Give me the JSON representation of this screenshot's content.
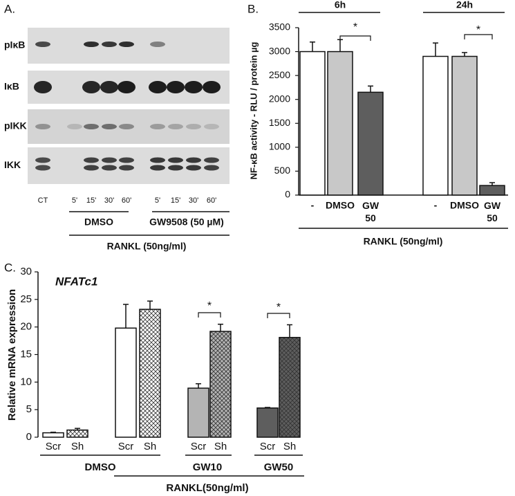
{
  "panel_a": {
    "label": "A.",
    "rows": [
      "pIκB",
      "IκB",
      "pIKK",
      "IKK"
    ],
    "lanes": [
      "CT",
      "5'",
      "15'",
      "30'",
      "60'",
      "5'",
      "15'",
      "30'",
      "60'"
    ],
    "groups": [
      "DMSO",
      "GW9508 (50 µM)"
    ],
    "treatment": "RANKL (50ng/ml)"
  },
  "chart_data": [
    {
      "type": "bar",
      "panel_label": "B.",
      "ylabel": "NF-κB activity - RLU / protein µg",
      "categories": [
        "-",
        "DMSO",
        "GW 50",
        "-",
        "DMSO",
        "GW 50"
      ],
      "values": [
        3000,
        3000,
        2150,
        2900,
        2900,
        200
      ],
      "errors": [
        200,
        250,
        130,
        280,
        80,
        60
      ],
      "colors": [
        "#ffffff",
        "#c8c8c8",
        "#5e5e5e",
        "#ffffff",
        "#c8c8c8",
        "#5e5e5e"
      ],
      "ylim": [
        0,
        3500
      ],
      "yticks": [
        0,
        500,
        1000,
        1500,
        2000,
        2500,
        3000,
        3500
      ],
      "groups": [
        "6h",
        "24h"
      ],
      "treatment": "RANKL (50ng/ml)",
      "annotations": [
        "*",
        "*"
      ]
    },
    {
      "type": "bar",
      "panel_label": "C.",
      "title": "NFATc1",
      "ylabel": "Relative mRNA expression",
      "categories": [
        "Scr",
        "Sh",
        "Scr",
        "Sh",
        "Scr",
        "Sh",
        "Scr",
        "Sh"
      ],
      "values": [
        0.8,
        1.3,
        19.8,
        23.2,
        8.9,
        19.2,
        5.3,
        18.1
      ],
      "errors": [
        0.1,
        0.3,
        4.3,
        1.5,
        0.8,
        1.3,
        0.1,
        2.3
      ],
      "colors": [
        "#ffffff",
        "#ffffff",
        "#ffffff",
        "#ffffff",
        "#b4b4b4",
        "#b4b4b4",
        "#5e5e5e",
        "#5e5e5e"
      ],
      "hatch": [
        false,
        true,
        false,
        true,
        false,
        true,
        false,
        true
      ],
      "ylim": [
        0,
        30
      ],
      "yticks": [
        0,
        5,
        10,
        15,
        20,
        25,
        30
      ],
      "groups": [
        "DMSO",
        "GW10",
        "GW50"
      ],
      "treatment": "RANKL(50ng/ml)",
      "annotations": [
        "*",
        "*"
      ]
    }
  ]
}
